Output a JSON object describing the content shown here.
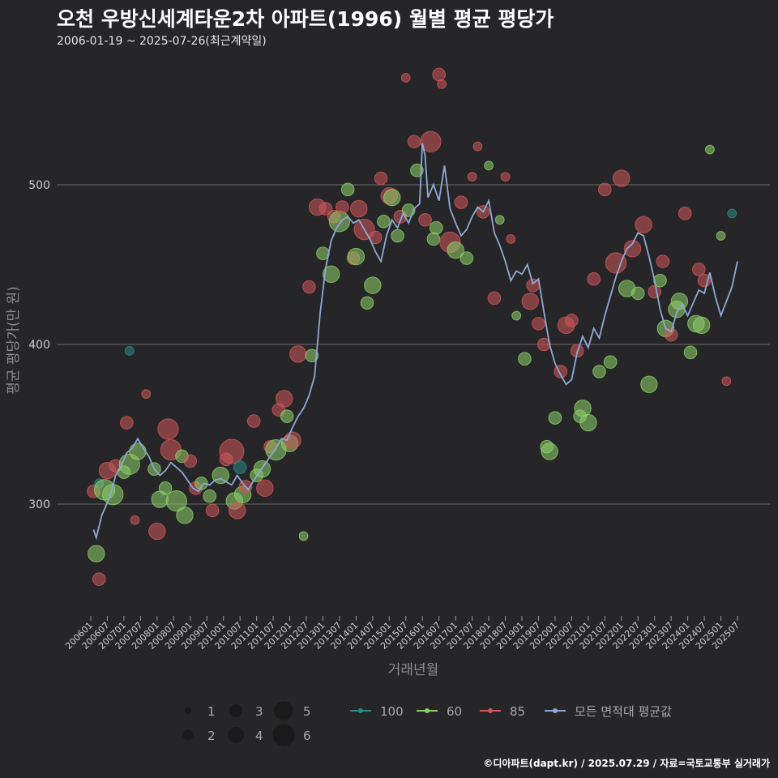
{
  "title": "오천 우방신세계타운2차 아파트(1996) 월별 평균 평당가",
  "subtitle": "2006-01-19 ~ 2025-07-26(최근계약일)",
  "footer": "©디아파트(dapt.kr) / 2025.07.29 / 자료=국토교통부 실거래가",
  "colors": {
    "background": "#262628",
    "grid": "#6a6a6a",
    "s100": "#2a8a86",
    "s60": "#8ed16a",
    "s85": "#d0575a",
    "avg": "#8fa9d6"
  },
  "chart_data": {
    "type": "scatter",
    "xlabel": "거래년월",
    "ylabel": "평균 평당가(만 원)",
    "ylim": [
      230,
      570
    ],
    "yticks": [
      300,
      400,
      500
    ],
    "x_start": "2006-01",
    "x_end": "2025-07",
    "xticks": [
      "200601",
      "200607",
      "200701",
      "200707",
      "200801",
      "200807",
      "200901",
      "200907",
      "201001",
      "201007",
      "201101",
      "201107",
      "201201",
      "201207",
      "201301",
      "201307",
      "201401",
      "201407",
      "201501",
      "201507",
      "201601",
      "201607",
      "201701",
      "201707",
      "201801",
      "201807",
      "201901",
      "201907",
      "202001",
      "202007",
      "202101",
      "202107",
      "202201",
      "202207",
      "202301",
      "202307",
      "202401",
      "202407",
      "202501",
      "202507"
    ],
    "size_legend": {
      "title": "",
      "values": [
        1,
        2,
        3,
        4,
        5,
        6
      ]
    },
    "color_legend": [
      {
        "name": "100",
        "key": "s100"
      },
      {
        "name": "60",
        "key": "s60"
      },
      {
        "name": "85",
        "key": "s85"
      },
      {
        "name": "모든 면적대 평균값",
        "key": "avg"
      }
    ],
    "average_line": {
      "name": "모든 면적대 평균값",
      "points": [
        [
          "2006-02",
          284
        ],
        [
          "2006-03",
          279
        ],
        [
          "2006-05",
          293
        ],
        [
          "2006-08",
          305
        ],
        [
          "2006-10",
          318
        ],
        [
          "2006-12",
          324
        ],
        [
          "2007-02",
          332
        ],
        [
          "2007-04",
          335
        ],
        [
          "2007-06",
          341
        ],
        [
          "2007-08",
          335
        ],
        [
          "2007-10",
          330
        ],
        [
          "2007-12",
          322
        ],
        [
          "2008-02",
          318
        ],
        [
          "2008-04",
          321
        ],
        [
          "2008-06",
          326
        ],
        [
          "2008-08",
          323
        ],
        [
          "2008-10",
          320
        ],
        [
          "2008-12",
          315
        ],
        [
          "2009-02",
          310
        ],
        [
          "2009-04",
          308
        ],
        [
          "2009-06",
          313
        ],
        [
          "2009-08",
          312
        ],
        [
          "2009-10",
          315
        ],
        [
          "2009-12",
          316
        ],
        [
          "2010-02",
          314
        ],
        [
          "2010-04",
          312
        ],
        [
          "2010-06",
          318
        ],
        [
          "2010-08",
          313
        ],
        [
          "2010-10",
          309
        ],
        [
          "2010-12",
          315
        ],
        [
          "2011-02",
          320
        ],
        [
          "2011-04",
          325
        ],
        [
          "2011-06",
          330
        ],
        [
          "2011-08",
          335
        ],
        [
          "2011-10",
          341
        ],
        [
          "2011-12",
          340
        ],
        [
          "2012-02",
          348
        ],
        [
          "2012-04",
          355
        ],
        [
          "2012-06",
          360
        ],
        [
          "2012-08",
          368
        ],
        [
          "2012-10",
          380
        ],
        [
          "2012-12",
          420
        ],
        [
          "2013-02",
          448
        ],
        [
          "2013-04",
          465
        ],
        [
          "2013-06",
          473
        ],
        [
          "2013-08",
          478
        ],
        [
          "2013-10",
          480
        ],
        [
          "2013-12",
          476
        ],
        [
          "2014-02",
          478
        ],
        [
          "2014-04",
          472
        ],
        [
          "2014-06",
          466
        ],
        [
          "2014-08",
          458
        ],
        [
          "2014-10",
          452
        ],
        [
          "2014-12",
          468
        ],
        [
          "2015-02",
          478
        ],
        [
          "2015-04",
          473
        ],
        [
          "2015-06",
          482
        ],
        [
          "2015-08",
          476
        ],
        [
          "2015-10",
          485
        ],
        [
          "2015-12",
          488
        ],
        [
          "2016-01",
          526
        ],
        [
          "2016-02",
          518
        ],
        [
          "2016-03",
          492
        ],
        [
          "2016-05",
          500
        ],
        [
          "2016-07",
          490
        ],
        [
          "2016-09",
          512
        ],
        [
          "2016-11",
          485
        ],
        [
          "2017-01",
          476
        ],
        [
          "2017-03",
          468
        ],
        [
          "2017-05",
          472
        ],
        [
          "2017-07",
          480
        ],
        [
          "2017-09",
          486
        ],
        [
          "2017-11",
          483
        ],
        [
          "2018-01",
          490
        ],
        [
          "2018-03",
          470
        ],
        [
          "2018-05",
          462
        ],
        [
          "2018-07",
          452
        ],
        [
          "2018-09",
          440
        ],
        [
          "2018-11",
          446
        ],
        [
          "2019-01",
          444
        ],
        [
          "2019-03",
          450
        ],
        [
          "2019-05",
          438
        ],
        [
          "2019-07",
          441
        ],
        [
          "2019-09",
          420
        ],
        [
          "2019-11",
          400
        ],
        [
          "2020-01",
          388
        ],
        [
          "2020-03",
          381
        ],
        [
          "2020-05",
          375
        ],
        [
          "2020-07",
          378
        ],
        [
          "2020-09",
          395
        ],
        [
          "2020-11",
          405
        ],
        [
          "2021-01",
          398
        ],
        [
          "2021-03",
          410
        ],
        [
          "2021-05",
          404
        ],
        [
          "2021-07",
          418
        ],
        [
          "2021-09",
          430
        ],
        [
          "2021-11",
          442
        ],
        [
          "2022-01",
          452
        ],
        [
          "2022-03",
          460
        ],
        [
          "2022-05",
          463
        ],
        [
          "2022-07",
          470
        ],
        [
          "2022-09",
          468
        ],
        [
          "2022-11",
          455
        ],
        [
          "2023-01",
          440
        ],
        [
          "2023-03",
          422
        ],
        [
          "2023-05",
          410
        ],
        [
          "2023-07",
          408
        ],
        [
          "2023-09",
          420
        ],
        [
          "2023-11",
          425
        ],
        [
          "2024-01",
          418
        ],
        [
          "2024-03",
          426
        ],
        [
          "2024-05",
          434
        ],
        [
          "2024-07",
          432
        ],
        [
          "2024-09",
          445
        ],
        [
          "2024-11",
          430
        ],
        [
          "2025-01",
          418
        ],
        [
          "2025-03",
          427
        ],
        [
          "2025-05",
          436
        ],
        [
          "2025-07",
          452
        ]
      ]
    },
    "points": [
      [
        "s60",
        "2006-03",
        269,
        3
      ],
      [
        "s85",
        "2006-04",
        253,
        2
      ],
      [
        "s85",
        "2006-02",
        308,
        2
      ],
      [
        "s100",
        "2006-04",
        313,
        1
      ],
      [
        "s60",
        "2006-06",
        309,
        4
      ],
      [
        "s85",
        "2006-07",
        321,
        3
      ],
      [
        "s60",
        "2006-09",
        306,
        4
      ],
      [
        "s85",
        "2006-10",
        324,
        2
      ],
      [
        "s60",
        "2007-01",
        320,
        2
      ],
      [
        "s60",
        "2007-03",
        325,
        4
      ],
      [
        "s85",
        "2007-02",
        351,
        2
      ],
      [
        "s100",
        "2007-03",
        396,
        1
      ],
      [
        "s85",
        "2007-05",
        290,
        1
      ],
      [
        "s60",
        "2007-06",
        333,
        3
      ],
      [
        "s85",
        "2007-09",
        369,
        1
      ],
      [
        "s60",
        "2007-12",
        322,
        2
      ],
      [
        "s85",
        "2008-01",
        283,
        3
      ],
      [
        "s60",
        "2008-02",
        303,
        3
      ],
      [
        "s60",
        "2008-04",
        310,
        2
      ],
      [
        "s85",
        "2008-05",
        347,
        4
      ],
      [
        "s85",
        "2008-06",
        334,
        4
      ],
      [
        "s60",
        "2008-08",
        302,
        4
      ],
      [
        "s60",
        "2008-10",
        330,
        2
      ],
      [
        "s60",
        "2008-11",
        293,
        3
      ],
      [
        "s85",
        "2009-01",
        327,
        2
      ],
      [
        "s85",
        "2009-03",
        310,
        2
      ],
      [
        "s60",
        "2009-05",
        313,
        2
      ],
      [
        "s60",
        "2009-08",
        305,
        2
      ],
      [
        "s85",
        "2009-09",
        296,
        2
      ],
      [
        "s60",
        "2009-12",
        318,
        3
      ],
      [
        "s85",
        "2010-02",
        328,
        2
      ],
      [
        "s85",
        "2010-04",
        333,
        5
      ],
      [
        "s60",
        "2010-05",
        302,
        3
      ],
      [
        "s100",
        "2010-07",
        323,
        2
      ],
      [
        "s85",
        "2010-06",
        296,
        3
      ],
      [
        "s60",
        "2010-08",
        306,
        3
      ],
      [
        "s85",
        "2010-09",
        311,
        2
      ],
      [
        "s85",
        "2010-12",
        352,
        2
      ],
      [
        "s60",
        "2011-01",
        318,
        2
      ],
      [
        "s60",
        "2011-03",
        322,
        3
      ],
      [
        "s85",
        "2011-04",
        310,
        3
      ],
      [
        "s85",
        "2011-06",
        336,
        2
      ],
      [
        "s60",
        "2011-08",
        334,
        4
      ],
      [
        "s85",
        "2011-09",
        359,
        2
      ],
      [
        "s85",
        "2011-11",
        366,
        3
      ],
      [
        "s60",
        "2011-12",
        355,
        2
      ],
      [
        "s60",
        "2012-01",
        338,
        3
      ],
      [
        "s85",
        "2012-02",
        340,
        3
      ],
      [
        "s85",
        "2012-04",
        394,
        3
      ],
      [
        "s60",
        "2012-06",
        280,
        1
      ],
      [
        "s85",
        "2012-08",
        436,
        2
      ],
      [
        "s60",
        "2012-09",
        393,
        2
      ],
      [
        "s85",
        "2012-11",
        486,
        3
      ],
      [
        "s60",
        "2013-01",
        457,
        2
      ],
      [
        "s85",
        "2013-02",
        485,
        2
      ],
      [
        "s60",
        "2013-04",
        444,
        3
      ],
      [
        "s85",
        "2013-05",
        480,
        2
      ],
      [
        "s60",
        "2013-07",
        477,
        4
      ],
      [
        "s85",
        "2013-08",
        486,
        2
      ],
      [
        "s60",
        "2013-10",
        497,
        2
      ],
      [
        "s85",
        "2013-12",
        454,
        2
      ],
      [
        "s60",
        "2014-01",
        455,
        3
      ],
      [
        "s85",
        "2014-02",
        485,
        3
      ],
      [
        "s85",
        "2014-04",
        472,
        4
      ],
      [
        "s60",
        "2014-05",
        426,
        2
      ],
      [
        "s60",
        "2014-07",
        437,
        3
      ],
      [
        "s85",
        "2014-08",
        467,
        2
      ],
      [
        "s85",
        "2014-10",
        504,
        2
      ],
      [
        "s60",
        "2014-11",
        477,
        2
      ],
      [
        "s85",
        "2015-01",
        493,
        3
      ],
      [
        "s60",
        "2015-02",
        492,
        3
      ],
      [
        "s60",
        "2015-04",
        468,
        2
      ],
      [
        "s85",
        "2015-05",
        480,
        2
      ],
      [
        "s85",
        "2015-07",
        567,
        1
      ],
      [
        "s60",
        "2015-08",
        484,
        2
      ],
      [
        "s85",
        "2015-10",
        527,
        2
      ],
      [
        "s60",
        "2015-11",
        509,
        2
      ],
      [
        "s85",
        "2016-02",
        478,
        2
      ],
      [
        "s85",
        "2016-04",
        527,
        4
      ],
      [
        "s60",
        "2016-05",
        466,
        2
      ],
      [
        "s60",
        "2016-06",
        473,
        2
      ],
      [
        "s85",
        "2016-07",
        569,
        2
      ],
      [
        "s85",
        "2016-08",
        563,
        1
      ],
      [
        "s85",
        "2016-11",
        464,
        4
      ],
      [
        "s60",
        "2017-01",
        459,
        3
      ],
      [
        "s85",
        "2017-03",
        489,
        2
      ],
      [
        "s60",
        "2017-05",
        454,
        2
      ],
      [
        "s85",
        "2017-07",
        505,
        1
      ],
      [
        "s85",
        "2017-09",
        524,
        1
      ],
      [
        "s85",
        "2017-11",
        483,
        2
      ],
      [
        "s60",
        "2018-01",
        512,
        1
      ],
      [
        "s85",
        "2018-03",
        429,
        2
      ],
      [
        "s60",
        "2018-05",
        478,
        1
      ],
      [
        "s85",
        "2018-07",
        505,
        1
      ],
      [
        "s85",
        "2018-09",
        466,
        1
      ],
      [
        "s60",
        "2018-11",
        418,
        1
      ],
      [
        "s60",
        "2019-02",
        391,
        2
      ],
      [
        "s85",
        "2019-04",
        427,
        3
      ],
      [
        "s85",
        "2019-05",
        437,
        2
      ],
      [
        "s85",
        "2019-07",
        413,
        2
      ],
      [
        "s85",
        "2019-09",
        400,
        2
      ],
      [
        "s60",
        "2019-10",
        336,
        2
      ],
      [
        "s60",
        "2019-11",
        333,
        3
      ],
      [
        "s60",
        "2020-01",
        354,
        2
      ],
      [
        "s85",
        "2020-03",
        383,
        2
      ],
      [
        "s85",
        "2020-05",
        412,
        3
      ],
      [
        "s85",
        "2020-07",
        415,
        2
      ],
      [
        "s85",
        "2020-09",
        396,
        2
      ],
      [
        "s60",
        "2020-10",
        355,
        2
      ],
      [
        "s60",
        "2020-11",
        360,
        3
      ],
      [
        "s60",
        "2021-01",
        351,
        3
      ],
      [
        "s85",
        "2021-03",
        441,
        2
      ],
      [
        "s60",
        "2021-05",
        383,
        2
      ],
      [
        "s85",
        "2021-07",
        497,
        2
      ],
      [
        "s60",
        "2021-09",
        389,
        2
      ],
      [
        "s85",
        "2021-11",
        451,
        4
      ],
      [
        "s85",
        "2022-01",
        504,
        3
      ],
      [
        "s60",
        "2022-03",
        435,
        3
      ],
      [
        "s85",
        "2022-05",
        460,
        3
      ],
      [
        "s60",
        "2022-07",
        432,
        2
      ],
      [
        "s85",
        "2022-09",
        475,
        3
      ],
      [
        "s60",
        "2022-11",
        375,
        3
      ],
      [
        "s85",
        "2023-01",
        433,
        2
      ],
      [
        "s60",
        "2023-03",
        440,
        2
      ],
      [
        "s85",
        "2023-04",
        452,
        2
      ],
      [
        "s60",
        "2023-05",
        410,
        3
      ],
      [
        "s85",
        "2023-07",
        406,
        2
      ],
      [
        "s60",
        "2023-09",
        422,
        3
      ],
      [
        "s60",
        "2023-10",
        427,
        3
      ],
      [
        "s85",
        "2023-12",
        482,
        2
      ],
      [
        "s60",
        "2024-02",
        395,
        2
      ],
      [
        "s60",
        "2024-04",
        413,
        3
      ],
      [
        "s85",
        "2024-05",
        447,
        2
      ],
      [
        "s60",
        "2024-06",
        412,
        3
      ],
      [
        "s85",
        "2024-07",
        440,
        2
      ],
      [
        "s60",
        "2024-09",
        522,
        1
      ],
      [
        "s60",
        "2025-01",
        468,
        1
      ],
      [
        "s85",
        "2025-03",
        377,
        1
      ],
      [
        "s100",
        "2025-05",
        482,
        1
      ]
    ]
  }
}
